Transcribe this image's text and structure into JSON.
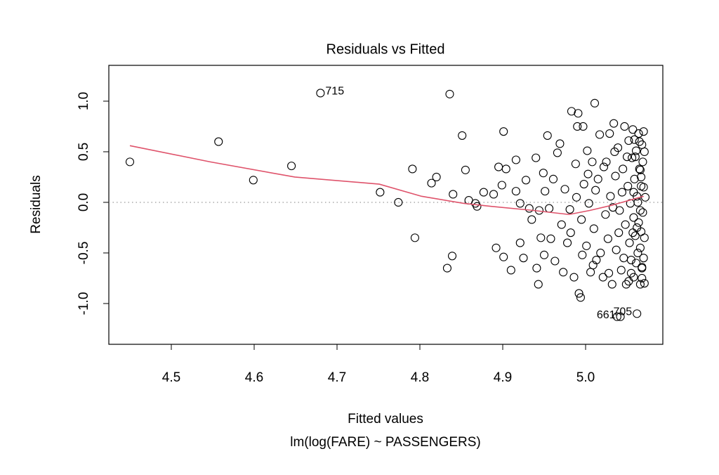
{
  "chart_data": {
    "type": "scatter",
    "title": "Residuals vs Fitted",
    "xlabel": "Fitted values",
    "subtitle": "lm(log(FARE) ~ PASSENGERS)",
    "ylabel": "Residuals",
    "xlim": [
      4.4246,
      5.0932
    ],
    "ylim": [
      -1.403,
      1.354
    ],
    "xticks": [
      4.5,
      4.6,
      4.7,
      4.8,
      4.9,
      {
        "value": 5.0,
        "label": "5.0"
      }
    ],
    "yticks": [
      {
        "value": -1.0,
        "label": "-1.0"
      },
      {
        "value": -0.5,
        "label": "-0.5"
      },
      {
        "value": 0,
        "label": "0.0"
      },
      0.5,
      {
        "value": 1.0,
        "label": "1.0"
      }
    ],
    "reference_line": 0,
    "points": {
      "color": "#000000",
      "x": [
        4.45,
        4.557,
        4.599,
        4.645,
        4.752,
        4.774,
        4.791,
        4.794,
        4.814,
        4.82,
        4.833,
        4.836,
        4.839,
        4.84,
        4.851,
        4.855,
        4.859,
        4.867,
        4.869,
        4.877,
        4.889,
        4.892,
        4.895,
        4.899,
        4.901,
        4.901,
        4.904,
        4.91,
        4.916,
        4.916,
        4.921,
        4.921,
        4.925,
        4.928,
        4.932,
        4.935,
        4.94,
        4.941,
        4.943,
        4.944,
        4.946,
        4.949,
        4.95,
        4.951,
        4.954,
        4.956,
        4.958,
        4.961,
        4.963,
        4.966,
        4.969,
        4.971,
        4.973,
        4.975,
        4.978,
        4.981,
        4.983,
        4.986,
        4.988,
        4.99,
        4.991,
        4.992,
        4.994,
        4.995,
        4.997,
        4.998,
        5.001,
        5.002,
        5.004,
        5.006,
        5.008,
        5.01,
        5.011,
        5.013,
        5.015,
        5.017,
        5.021,
        5.024,
        5.025,
        5.027,
        5.029,
        5.03,
        5.032,
        5.034,
        5.036,
        5.037,
        5.039,
        5.041,
        5.043,
        5.045,
        5.047,
        5.048,
        5.049,
        5.051,
        5.052,
        5.053,
        5.054,
        5.055,
        5.056,
        5.057,
        5.058,
        5.058,
        5.059,
        5.06,
        5.061,
        5.062,
        5.063,
        5.064,
        5.065,
        5.066,
        5.066,
        5.067,
        5.067,
        5.068,
        5.068,
        5.055,
        5.057,
        5.058,
        5.06,
        5.061,
        5.063,
        5.064,
        5.065,
        5.066,
        5.067,
        5.068,
        5.069,
        5.069,
        5.07,
        5.07,
        5.07,
        5.071,
        5.071,
        5.071,
        5.072,
        5.05,
        5.046,
        5.044,
        5.04,
        5.035,
        5.033,
        5.028,
        5.022,
        5.018,
        5.012,
        5.009,
        5.003,
        4.996,
        4.989,
        4.982,
        5.052,
        5.059,
        5.062,
        5.066,
        5.068
      ],
      "y": [
        0.4,
        0.6,
        0.22,
        0.36,
        0.1,
        0.0,
        0.33,
        -0.35,
        0.19,
        0.25,
        -0.65,
        1.07,
        -0.53,
        0.08,
        0.66,
        0.32,
        0.02,
        -0.01,
        -0.04,
        0.1,
        0.08,
        -0.45,
        0.35,
        0.17,
        0.7,
        -0.54,
        0.33,
        -0.67,
        0.42,
        0.11,
        -0.4,
        -0.01,
        -0.55,
        0.22,
        -0.06,
        -0.17,
        0.44,
        -0.65,
        -0.81,
        -0.08,
        -0.35,
        0.29,
        -0.52,
        0.11,
        0.66,
        -0.06,
        -0.36,
        0.23,
        -0.58,
        0.49,
        0.58,
        -0.22,
        -0.69,
        0.13,
        -0.4,
        -0.07,
        0.9,
        -0.74,
        0.38,
        0.75,
        0.88,
        -0.9,
        -0.94,
        -0.17,
        0.75,
        0.18,
        -0.43,
        0.51,
        -0.01,
        -0.69,
        0.4,
        -0.26,
        0.98,
        -0.57,
        0.23,
        0.67,
        -0.74,
        -0.12,
        0.4,
        -0.36,
        0.68,
        0.06,
        -0.81,
        0.78,
        0.26,
        -0.47,
        0.54,
        -0.08,
        -0.67,
        0.33,
        0.75,
        -0.22,
        -0.81,
        0.16,
        0.61,
        -0.4,
        -0.01,
        -0.57,
        0.44,
        0.72,
        -0.15,
        -0.74,
        0.23,
        -0.33,
        0.51,
        0.06,
        -0.5,
        0.68,
        0.33,
        -0.08,
        -0.81,
        0.16,
        -0.29,
        0.57,
        -0.64,
        -0.7,
        -0.3,
        0.1,
        0.45,
        -0.6,
        0.0,
        -0.2,
        0.6,
        -0.45,
        0.25,
        -0.75,
        0.4,
        -0.1,
        0.7,
        -0.55,
        0.15,
        -0.35,
        0.5,
        -0.8,
        0.05,
        0.45,
        -0.55,
        0.1,
        -0.3,
        0.5,
        -0.05,
        -0.7,
        0.35,
        -0.5,
        0.12,
        -0.62,
        0.28,
        -0.52,
        0.05,
        -0.3,
        -0.78,
        0.62,
        -0.25,
        0.32,
        -0.65
      ]
    },
    "labeled_points": {
      "color": "#000000",
      "x": [
        4.68,
        5.038,
        5.042,
        5.062
      ],
      "y": [
        1.08,
        -1.13,
        -1.13,
        -1.1
      ],
      "labels": [
        "715",
        null,
        "661",
        "705"
      ]
    },
    "smooth": {
      "color": "#df536b",
      "x": [
        4.45,
        4.547,
        4.649,
        4.751,
        4.802,
        4.853,
        4.886,
        4.937,
        4.98,
        5.005,
        5.031,
        5.07
      ],
      "y": [
        0.56,
        0.4,
        0.25,
        0.18,
        0.06,
        -0.01,
        -0.04,
        -0.08,
        -0.12,
        -0.08,
        -0.03,
        0.06
      ]
    }
  }
}
